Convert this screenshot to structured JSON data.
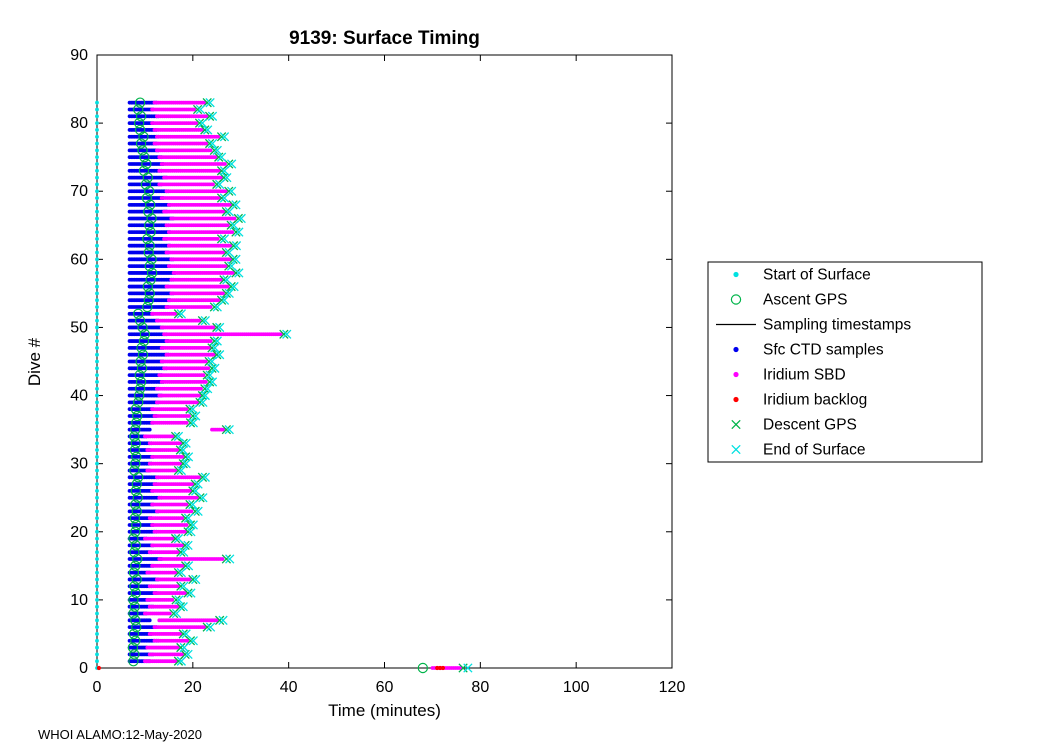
{
  "title": "9139: Surface Timing",
  "xlabel": "Time (minutes)",
  "ylabel": "Dive #",
  "footer": "WHOI ALAMO:12-May-2020",
  "colors": {
    "start": "#00E1E1",
    "ascent_gps": "#00B44A",
    "sampling_line": "#000000",
    "ctd": "#0000EE",
    "sbd": "#FF00FF",
    "backlog": "#FF0000",
    "descent_gps": "#00B44A",
    "end": "#00E1E1",
    "axis": "#000000"
  },
  "legend": [
    {
      "label": "Start of Surface",
      "marker": "dot",
      "color": "#00E1E1"
    },
    {
      "label": "Ascent GPS",
      "marker": "circle",
      "color": "#00B44A"
    },
    {
      "label": "Sampling timestamps",
      "marker": "line",
      "color": "#000000"
    },
    {
      "label": "Sfc CTD samples",
      "marker": "dot",
      "color": "#0000EE"
    },
    {
      "label": "Iridium SBD",
      "marker": "dot",
      "color": "#FF00FF"
    },
    {
      "label": "Iridium backlog",
      "marker": "dot",
      "color": "#FF0000"
    },
    {
      "label": "Descent GPS",
      "marker": "x",
      "color": "#00B44A"
    },
    {
      "label": "End of Surface",
      "marker": "x",
      "color": "#00E1E1"
    }
  ],
  "chart_data": {
    "type": "scatter",
    "title": "9139: Surface Timing",
    "xlabel": "Time (minutes)",
    "ylabel": "Dive #",
    "xlim": [
      0,
      120
    ],
    "ylim": [
      0,
      90
    ],
    "xticks": [
      0,
      20,
      40,
      60,
      80,
      100,
      120
    ],
    "yticks": [
      0,
      10,
      20,
      30,
      40,
      50,
      60,
      70,
      80,
      90
    ],
    "grid": false,
    "legend_position": "right-outside",
    "start_min": 0,
    "ctd_start": 6.8,
    "ctd_step": 0.35,
    "sbd_step": 0.4,
    "dive_fields": [
      "dive",
      "ascent_gps_min",
      "ctd_end_min",
      "sbd_start_min",
      "sbd_end_min",
      "descent_gps_min",
      "end_of_surface_min"
    ],
    "dives": [
      [
        1,
        7.6,
        11,
        10,
        16.5,
        17,
        17.6
      ],
      [
        2,
        7.8,
        12,
        11,
        18,
        18.4,
        19
      ],
      [
        3,
        7.5,
        10.5,
        10.5,
        17,
        17.5,
        18.2
      ],
      [
        4,
        8,
        13,
        12,
        19,
        19.5,
        20.1
      ],
      [
        5,
        7.7,
        11.5,
        11,
        17.5,
        18,
        18.6
      ],
      [
        6,
        8.2,
        12.5,
        12,
        22.5,
        23,
        23.7
      ],
      [
        7,
        8,
        11,
        13,
        25,
        25.6,
        26.3
      ],
      [
        8,
        7.6,
        10.5,
        10,
        15.5,
        16,
        16.6
      ],
      [
        9,
        7.9,
        12,
        11,
        17,
        17.4,
        18
      ],
      [
        10,
        7.6,
        11,
        10.5,
        16,
        16.5,
        17.1
      ],
      [
        11,
        8.1,
        12.5,
        12,
        18.5,
        19,
        19.6
      ],
      [
        12,
        7.8,
        11.5,
        11,
        17,
        17.5,
        18.1
      ],
      [
        13,
        8.3,
        13,
        12.5,
        19.5,
        20,
        20.6
      ],
      [
        14,
        7.7,
        11,
        10.5,
        16.5,
        17,
        17.6
      ],
      [
        15,
        8,
        12,
        11.5,
        18,
        18.5,
        19.1
      ],
      [
        16,
        8.4,
        13.5,
        13,
        26.5,
        27,
        27.7
      ],
      [
        17,
        7.8,
        11.5,
        11,
        17,
        17.5,
        18.1
      ],
      [
        18,
        8.1,
        12,
        11.5,
        18,
        18.4,
        19
      ],
      [
        19,
        7.6,
        10.5,
        10,
        16,
        16.4,
        17
      ],
      [
        20,
        8,
        12.5,
        12,
        18.5,
        19,
        19.6
      ],
      [
        21,
        8.2,
        12,
        11.5,
        19,
        19.5,
        20.1
      ],
      [
        22,
        7.9,
        11.5,
        11,
        18,
        18.5,
        19.1
      ],
      [
        23,
        8.3,
        13,
        12.5,
        20,
        20.5,
        21.1
      ],
      [
        24,
        8,
        12,
        11.5,
        19,
        19.4,
        20
      ],
      [
        25,
        8.5,
        13.5,
        13,
        21,
        21.5,
        22.1
      ],
      [
        26,
        8.1,
        12,
        11.5,
        19.5,
        20,
        20.6
      ],
      [
        27,
        8.3,
        12.5,
        12,
        20,
        20.5,
        21.1
      ],
      [
        28,
        8.6,
        13,
        12.5,
        21.5,
        22,
        22.6
      ],
      [
        29,
        7.8,
        11,
        10.5,
        16.5,
        17,
        17.6
      ],
      [
        30,
        8,
        11.5,
        11,
        17.5,
        18,
        18.6
      ],
      [
        31,
        8.2,
        12,
        11.5,
        18,
        18.5,
        19.1
      ],
      [
        32,
        7.9,
        11,
        10.5,
        17,
        17.4,
        18
      ],
      [
        33,
        8.1,
        11.5,
        11,
        17.5,
        18,
        18.6
      ],
      [
        34,
        7.8,
        10.5,
        10,
        16,
        16.4,
        17
      ],
      [
        35,
        8,
        11,
        24,
        26.5,
        27,
        27.6
      ],
      [
        36,
        8.2,
        12,
        11.5,
        19,
        19.5,
        20.1
      ],
      [
        37,
        8.4,
        12.5,
        12,
        19.5,
        20,
        20.6
      ],
      [
        38,
        8.1,
        12,
        11.5,
        19,
        19.4,
        20
      ],
      [
        39,
        8.6,
        13,
        12.5,
        21,
        21.5,
        22.1
      ],
      [
        40,
        8.8,
        13.5,
        13,
        21.5,
        22,
        22.6
      ],
      [
        41,
        9,
        13,
        12.5,
        22,
        22.5,
        23.1
      ],
      [
        42,
        9.2,
        14,
        13.5,
        23,
        23.5,
        24.1
      ],
      [
        43,
        8.9,
        13.5,
        13,
        22.5,
        23,
        23.6
      ],
      [
        44,
        9.4,
        14.5,
        14,
        23.5,
        24,
        24.6
      ],
      [
        45,
        9.1,
        14,
        13.5,
        23,
        23.4,
        24
      ],
      [
        46,
        9.6,
        15,
        14.5,
        24.5,
        25,
        25.6
      ],
      [
        47,
        9.3,
        14,
        13.5,
        23.5,
        24,
        24.6
      ],
      [
        48,
        9.8,
        15,
        14.5,
        24,
        24.5,
        25.1
      ],
      [
        49,
        10,
        14.5,
        14,
        38.5,
        39,
        39.6
      ],
      [
        50,
        9.5,
        14,
        13.5,
        24.5,
        25,
        25.6
      ],
      [
        51,
        9,
        13,
        12.5,
        21.5,
        22,
        22.6
      ],
      [
        52,
        8.6,
        12,
        11.5,
        16.5,
        17,
        17.6
      ],
      [
        53,
        10.5,
        15,
        14.5,
        24,
        24.5,
        25.1
      ],
      [
        54,
        10.8,
        15.5,
        15,
        25.5,
        26,
        26.6
      ],
      [
        55,
        11,
        16,
        15.5,
        26.5,
        27,
        27.6
      ],
      [
        56,
        10.6,
        15,
        14.5,
        27.5,
        28,
        28.6
      ],
      [
        57,
        11.2,
        16,
        15.5,
        26,
        26.5,
        27.1
      ],
      [
        58,
        11.5,
        16.5,
        16,
        28.5,
        29,
        29.6
      ],
      [
        59,
        11,
        15.5,
        15,
        27,
        27.5,
        28.1
      ],
      [
        60,
        11.4,
        16,
        15.5,
        28,
        28.4,
        29
      ],
      [
        61,
        10.8,
        15,
        14.5,
        26.5,
        27,
        27.6
      ],
      [
        62,
        11,
        15.5,
        15,
        28,
        28.5,
        29.1
      ],
      [
        63,
        10.5,
        14.5,
        14,
        25.5,
        26,
        26.6
      ],
      [
        64,
        11.2,
        15.5,
        15,
        28.5,
        29,
        29.6
      ],
      [
        65,
        10.9,
        15,
        14.5,
        27.5,
        28,
        28.6
      ],
      [
        66,
        11.4,
        16,
        15.5,
        29,
        29.5,
        30.1
      ],
      [
        67,
        10.7,
        14.5,
        14,
        26.5,
        27,
        27.6
      ],
      [
        68,
        11.1,
        15.5,
        15,
        28,
        28.4,
        29
      ],
      [
        69,
        10.4,
        14,
        13.5,
        25.5,
        26,
        26.6
      ],
      [
        70,
        10.9,
        15,
        14.5,
        27,
        27.5,
        28.1
      ],
      [
        71,
        10.2,
        13.5,
        13,
        24.5,
        25,
        25.6
      ],
      [
        72,
        10.6,
        14.5,
        14,
        26,
        26.5,
        27.1
      ],
      [
        73,
        9.8,
        13.5,
        13,
        25.5,
        26,
        26.6
      ],
      [
        74,
        10.3,
        14,
        13.5,
        27,
        27.5,
        28.1
      ],
      [
        75,
        9.9,
        13.5,
        13,
        25,
        25.4,
        26
      ],
      [
        76,
        9.5,
        13,
        12.5,
        24,
        24.5,
        25.1
      ],
      [
        77,
        9.2,
        12.5,
        12,
        23,
        23.5,
        24.1
      ],
      [
        78,
        9.7,
        13,
        12.5,
        25.5,
        26,
        26.6
      ],
      [
        79,
        9,
        12.5,
        12,
        22,
        22.5,
        23.1
      ],
      [
        80,
        8.8,
        12,
        11.5,
        21,
        21.4,
        22
      ],
      [
        81,
        9.2,
        13,
        12.5,
        23,
        23.5,
        24.1
      ],
      [
        82,
        8.6,
        12,
        11.5,
        20.5,
        21,
        21.6
      ],
      [
        83,
        9,
        12.5,
        12,
        22.5,
        23,
        23.6
      ]
    ],
    "dive0": {
      "dive": 0,
      "start": 0,
      "ascent_gps": 68,
      "sbd": [
        70,
        76
      ],
      "backlog": [
        0.4,
        71,
        71.6,
        72.2
      ],
      "descent_gps": 76.4,
      "end_of_surface": 77.4
    }
  }
}
